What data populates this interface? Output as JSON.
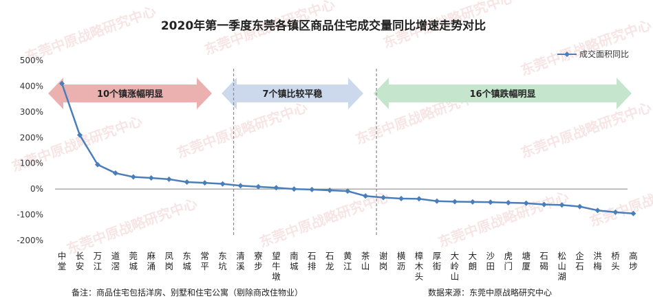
{
  "chart_data": {
    "type": "line",
    "title": "2020年第一季度东莞各镇区商品住宅成交量同比增速走势对比",
    "legend": {
      "label": "成交面积同比",
      "position": "top-right"
    },
    "y_ticks": [
      "500%",
      "400%",
      "300%",
      "200%",
      "100%",
      "0%",
      "-100%",
      "-200%"
    ],
    "ylim": [
      -200,
      500
    ],
    "grid": false,
    "categories": [
      "中堂",
      "长安",
      "万江",
      "道滘",
      "莞城",
      "麻涌",
      "凤岗",
      "东城",
      "常平",
      "东坑",
      "清溪",
      "寮步",
      "望牛墩",
      "南城",
      "石排",
      "石龙",
      "黄江",
      "茶山",
      "谢岗",
      "横沥",
      "樟木头",
      "厚街",
      "大岭山",
      "大朗",
      "沙田",
      "虎门",
      "塘厦",
      "石碣",
      "松山湖",
      "企石",
      "洪梅",
      "桥头",
      "高埗"
    ],
    "series": [
      {
        "name": "成交面积同比",
        "values": [
          410,
          210,
          95,
          62,
          47,
          43,
          38,
          27,
          24,
          20,
          13,
          9,
          5,
          0,
          -2,
          -5,
          -8,
          -27,
          -33,
          -37,
          -38,
          -47,
          -49,
          -50,
          -51,
          -53,
          -55,
          -60,
          -62,
          -68,
          -83,
          -90,
          -95
        ]
      }
    ],
    "bands": [
      {
        "label": "10个镇涨幅明显",
        "color": "#e9a9a9"
      },
      {
        "label": "7个镇比较平稳",
        "color": "#c7d5ea"
      },
      {
        "label": "16个镇跌幅明显",
        "color": "#bfe3c8"
      }
    ]
  },
  "footer": {
    "note": "备注：商品住宅包括洋房、别墅和住宅公寓（剔除商改住物业）",
    "source": "数据来源：东莞中原战略研究中心"
  },
  "watermark": "东莞中原战略研究中心",
  "colors": {
    "line": "#4a7ebb",
    "axis": "#7f7f7f",
    "divider": "#888888"
  }
}
